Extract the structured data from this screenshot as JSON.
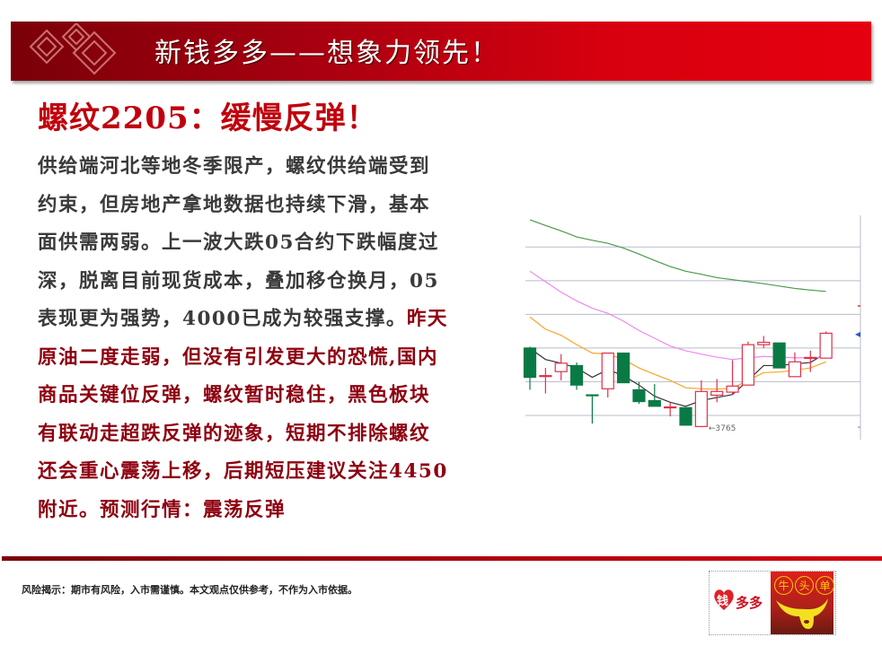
{
  "banner": {
    "title": "新钱多多——想象力领先！"
  },
  "headline": "螺纹2205：缓慢反弹！",
  "body_lines": [
    [
      {
        "t": "供给端河北等地冬季限产，螺纹供给端受到",
        "c": "black"
      }
    ],
    [
      {
        "t": "约束，但房地产拿地数据也持续下滑，基本",
        "c": "black"
      }
    ],
    [
      {
        "t": "面供需两弱。上一波大跌05合约下跌幅度过",
        "c": "black"
      }
    ],
    [
      {
        "t": "深，脱离目前现货成本，叠加移仓换月，05",
        "c": "black"
      }
    ],
    [
      {
        "t": "表现更为强势，4000已成为较强支撑。",
        "c": "black"
      },
      {
        "t": "昨天",
        "c": "red"
      }
    ],
    [
      {
        "t": "原油二度走弱，但没有引发更大的恐慌,国内",
        "c": "red"
      }
    ],
    [
      {
        "t": "商品关键位反弹，螺纹暂时稳住，黑色板块",
        "c": "red"
      }
    ],
    [
      {
        "t": "有联动走超跌反弹的迹象，短期不排除螺纹",
        "c": "red"
      }
    ],
    [
      {
        "t": "还会重心震荡上移，后期短压建议关注4450",
        "c": "red"
      }
    ],
    [
      {
        "t": "附近。预测行情：震荡反弹",
        "c": "red"
      }
    ]
  ],
  "colors": {
    "accent_red": "#c0000c",
    "body_red": "#8e0010",
    "body_black": "#3a3a3a",
    "candle_up": "#e0304a",
    "candle_down": "#0a7a45"
  },
  "chart_data": {
    "type": "candlestick",
    "ylim": [
      3728,
      4394
    ],
    "grid": true,
    "annotations": [
      {
        "label": "3765",
        "value": 3765
      }
    ],
    "candles": [
      {
        "o": 4000,
        "h": 4004,
        "l": 3876,
        "c": 3913
      },
      {
        "o": 3918,
        "h": 3941,
        "l": 3865,
        "c": 3918
      },
      {
        "o": 3930,
        "h": 3982,
        "l": 3904,
        "c": 3955
      },
      {
        "o": 3948,
        "h": 3957,
        "l": 3876,
        "c": 3890
      },
      {
        "o": 3861,
        "h": 3862,
        "l": 3776,
        "c": 3860
      },
      {
        "o": 3879,
        "h": 3985,
        "l": 3853,
        "c": 3985
      },
      {
        "o": 3985,
        "h": 3985,
        "l": 3897,
        "c": 3897
      },
      {
        "o": 3876,
        "h": 3899,
        "l": 3834,
        "c": 3841
      },
      {
        "o": 3844,
        "h": 3893,
        "l": 3827,
        "c": 3827
      },
      {
        "o": 3824,
        "h": 3839,
        "l": 3797,
        "c": 3825
      },
      {
        "o": 3823,
        "h": 3823,
        "l": 3771,
        "c": 3771
      },
      {
        "o": 3767,
        "h": 3904,
        "l": 3765,
        "c": 3871
      },
      {
        "o": 3860,
        "h": 3908,
        "l": 3839,
        "c": 3871
      },
      {
        "o": 3869,
        "h": 3964,
        "l": 3862,
        "c": 3887
      },
      {
        "o": 3890,
        "h": 4019,
        "l": 3890,
        "c": 4010
      },
      {
        "o": 4010,
        "h": 4036,
        "l": 4000,
        "c": 4017
      },
      {
        "o": 4015,
        "h": 4015,
        "l": 3941,
        "c": 3941
      },
      {
        "o": 3915,
        "h": 3987,
        "l": 3915,
        "c": 3959
      },
      {
        "o": 3970,
        "h": 3992,
        "l": 3929,
        "c": 3972
      },
      {
        "o": 3970,
        "h": 4049,
        "l": 3970,
        "c": 4044
      }
    ],
    "moving_averages": [
      {
        "color": "#333333",
        "values": [
          3999,
          3966,
          3955,
          3941,
          3913,
          3936,
          3918,
          3890,
          3857,
          3839,
          3827,
          3844,
          3853,
          3862,
          3904,
          3948,
          3948,
          3953,
          3957,
          3985
        ]
      },
      {
        "color": "#f5a623",
        "values": [
          4092,
          4056,
          4038,
          4010,
          3985,
          3982,
          3966,
          3941,
          3922,
          3904,
          3882,
          3879,
          3878,
          3881,
          3904,
          3927,
          3929,
          3934,
          3941,
          3959
        ]
      },
      {
        "color": "#ee88ee",
        "values": [
          4228,
          4197,
          4166,
          4140,
          4118,
          4103,
          4080,
          4052,
          4029,
          4006,
          3992,
          3982,
          3973,
          3966,
          3971,
          3975,
          3973,
          3971,
          3971,
          3973
        ]
      },
      {
        "color": "#4a9a4a",
        "values": [
          4381,
          4364,
          4348,
          4330,
          4320,
          4311,
          4297,
          4279,
          4260,
          4242,
          4228,
          4219,
          4209,
          4203,
          4197,
          4191,
          4184,
          4177,
          4172,
          4168
        ]
      }
    ]
  },
  "footer": {
    "risk_notice": "风险揭示：期市有风险，入市需谨慎。本文观点仅供参考，不作为入市依据。"
  },
  "logo": {
    "heart_char": "钱",
    "brand_text": "多多",
    "right_chars": [
      "牛",
      "头",
      "单"
    ]
  }
}
